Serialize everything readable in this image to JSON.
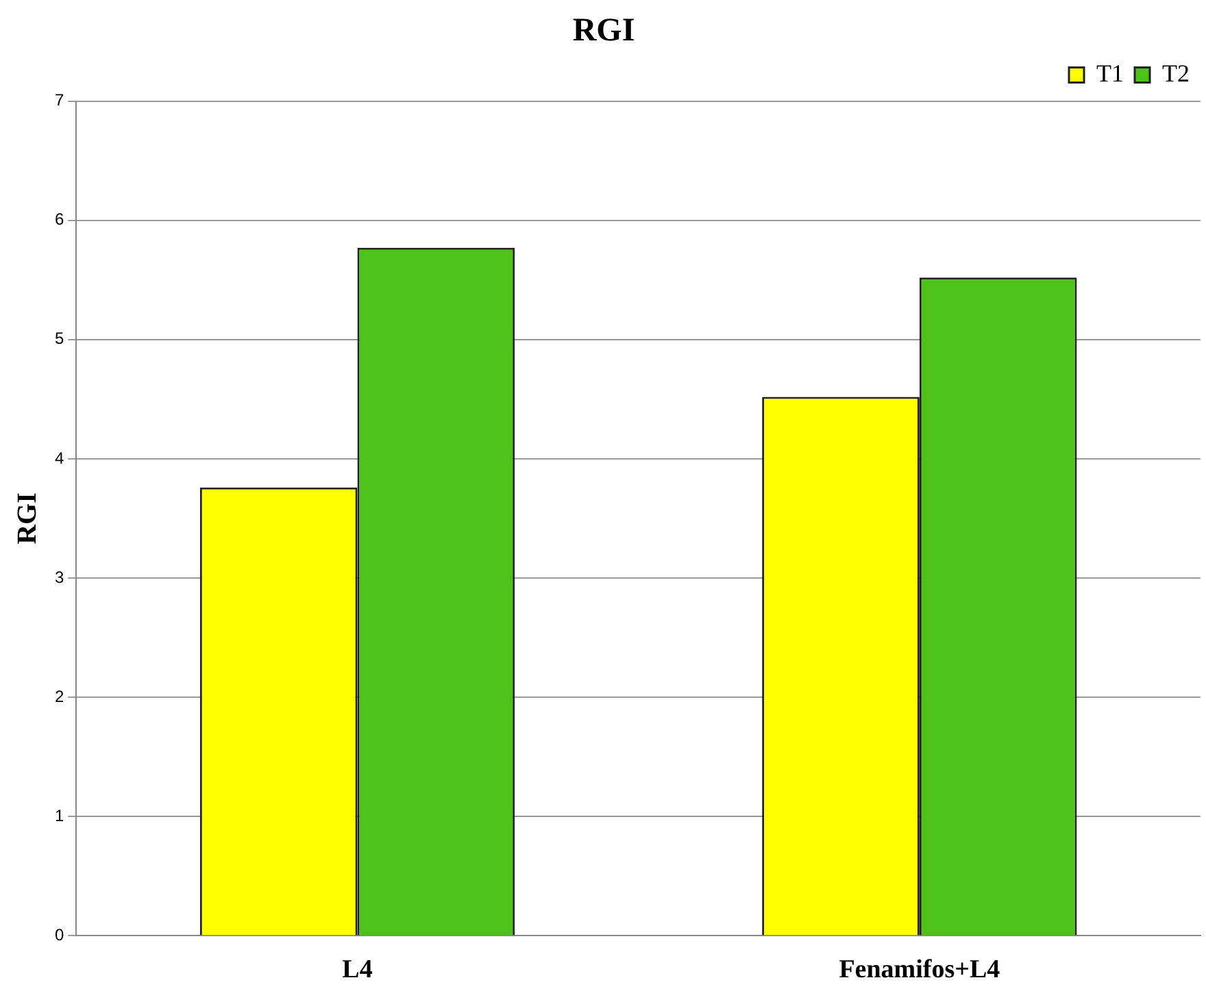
{
  "chart_data": {
    "type": "bar",
    "title": "RGI",
    "ylabel": "RGI",
    "categories": [
      "L4",
      "Fenamifos+L4"
    ],
    "series": [
      {
        "name": "T1",
        "color": "#ffff00",
        "values": [
          3.76,
          4.52
        ]
      },
      {
        "name": "T2",
        "color": "#4cc21a",
        "values": [
          5.77,
          5.52
        ]
      }
    ],
    "ylim": [
      0,
      7
    ],
    "yticks": [
      0,
      1,
      2,
      3,
      4,
      5,
      6,
      7
    ],
    "grid": "y",
    "legend": "top right"
  }
}
